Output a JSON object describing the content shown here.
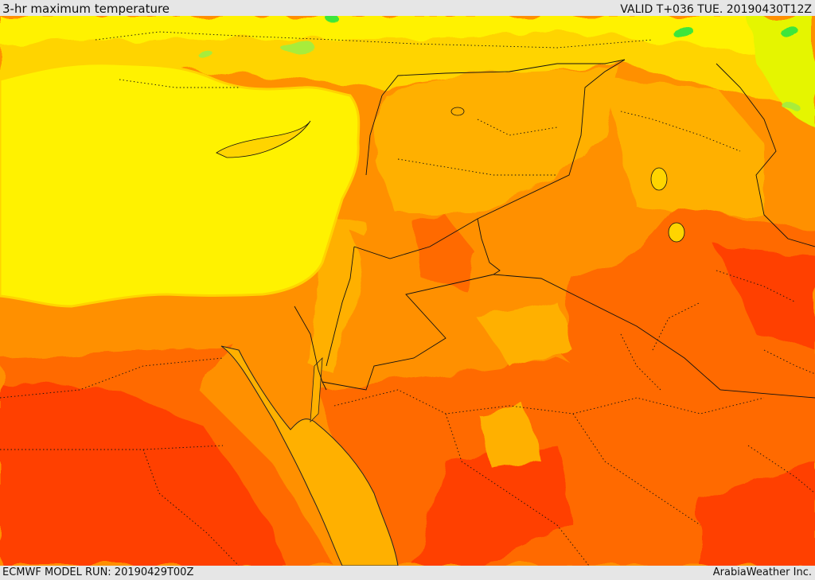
{
  "header": {
    "title": "3-hr maximum temperature",
    "valid": "VALID T+036 TUE. 20190430T12Z"
  },
  "footer": {
    "model_run": "ECMWF MODEL RUN: 20190429T00Z",
    "credit": "ArabiaWeather Inc."
  },
  "palette": {
    "light_green": "#a8ec3a",
    "green": "#3ee63a",
    "yellow_green": "#e5f500",
    "yellow": "#fff200",
    "gold": "#ffd400",
    "amber": "#ffb000",
    "orange": "#ff9000",
    "dark_orange": "#ff6a00",
    "red_orange": "#ff4000",
    "borders": "#111111"
  }
}
